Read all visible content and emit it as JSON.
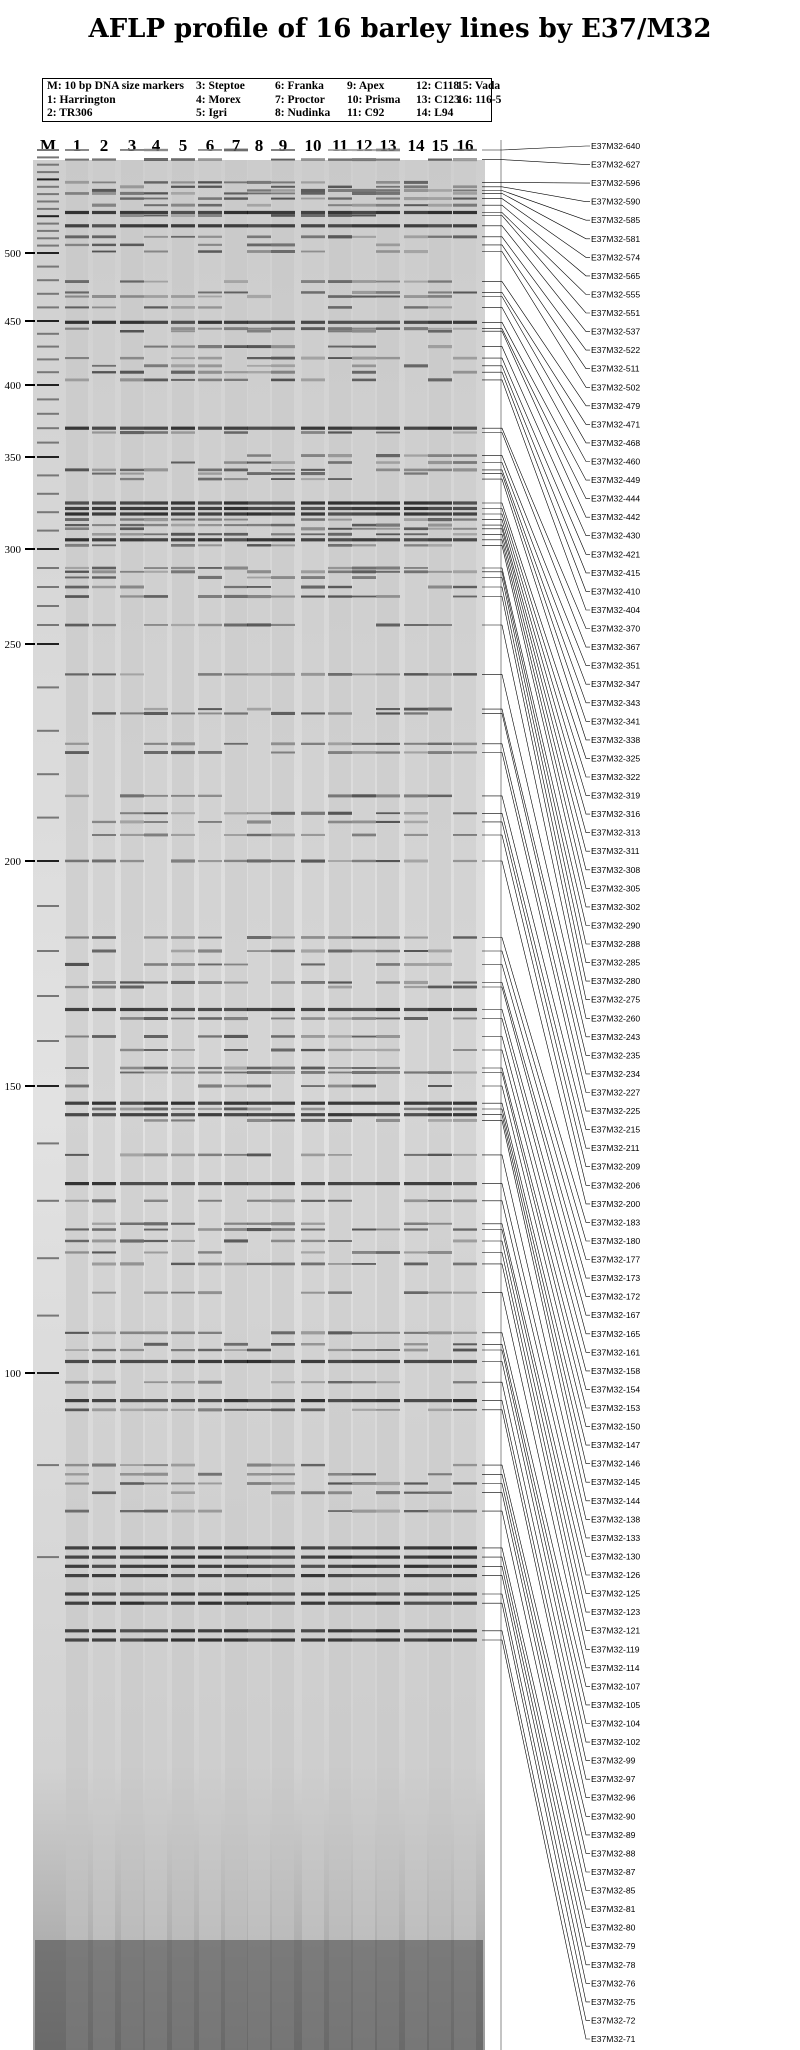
{
  "title": "AFLP profile of 16 barley lines by E37/M32",
  "legend": [
    [
      "M: 10 bp DNA size markers",
      "1: Harrington",
      "2: TR306"
    ],
    [
      "3: Steptoe",
      "4: Morex",
      "5: Igri"
    ],
    [
      "6: Franka",
      "7: Proctor",
      "8: Nudinka"
    ],
    [
      "9: Apex",
      "10: Prisma",
      "11: C92"
    ],
    [
      "12: C118",
      "13: C123",
      "14: L94"
    ],
    [
      "15: Vada",
      "16: 116-5"
    ]
  ],
  "lanes": [
    "M",
    "1",
    "2",
    "3",
    "4",
    "5",
    "6",
    "7",
    "8",
    "9",
    "10",
    "11",
    "12",
    "13",
    "14",
    "15",
    "16"
  ],
  "size_markers": [
    500,
    450,
    400,
    350,
    300,
    250,
    200,
    150,
    100
  ],
  "bands": [
    "E37M32-640",
    "E37M32-627",
    "E37M32-596",
    "E37M32-590",
    "E37M32-585",
    "E37M32-581",
    "E37M32-574",
    "E37M32-565",
    "E37M32-555",
    "E37M32-551",
    "E37M32-537",
    "E37M32-522",
    "E37M32-511",
    "E37M32-502",
    "E37M32-479",
    "E37M32-471",
    "E37M32-468",
    "E37M32-460",
    "E37M32-449",
    "E37M32-444",
    "E37M32-442",
    "E37M32-430",
    "E37M32-421",
    "E37M32-415",
    "E37M32-410",
    "E37M32-404",
    "E37M32-370",
    "E37M32-367",
    "E37M32-351",
    "E37M32-347",
    "E37M32-343",
    "E37M32-341",
    "E37M32-338",
    "E37M32-325",
    "E37M32-322",
    "E37M32-319",
    "E37M32-316",
    "E37M32-313",
    "E37M32-311",
    "E37M32-308",
    "E37M32-305",
    "E37M32-302",
    "E37M32-290",
    "E37M32-288",
    "E37M32-285",
    "E37M32-280",
    "E37M32-275",
    "E37M32-260",
    "E37M32-243",
    "E37M32-235",
    "E37M32-234",
    "E37M32-227",
    "E37M32-225",
    "E37M32-215",
    "E37M32-211",
    "E37M32-209",
    "E37M32-206",
    "E37M32-200",
    "E37M32-183",
    "E37M32-180",
    "E37M32-177",
    "E37M32-173",
    "E37M32-172",
    "E37M32-167",
    "E37M32-165",
    "E37M32-161",
    "E37M32-158",
    "E37M32-154",
    "E37M32-153",
    "E37M32-150",
    "E37M32-147",
    "E37M32-146",
    "E37M32-145",
    "E37M32-144",
    "E37M32-138",
    "E37M32-133",
    "E37M32-130",
    "E37M32-126",
    "E37M32-125",
    "E37M32-123",
    "E37M32-121",
    "E37M32-119",
    "E37M32-114",
    "E37M32-107",
    "E37M32-105",
    "E37M32-104",
    "E37M32-102",
    "E37M32-99",
    "E37M32-97",
    "E37M32-96",
    "E37M32-90",
    "E37M32-89",
    "E37M32-88",
    "E37M32-87",
    "E37M32-85",
    "E37M32-81",
    "E37M32-80",
    "E37M32-79",
    "E37M32-78",
    "E37M32-76",
    "E37M32-75",
    "E37M32-72",
    "E37M32-71"
  ]
}
